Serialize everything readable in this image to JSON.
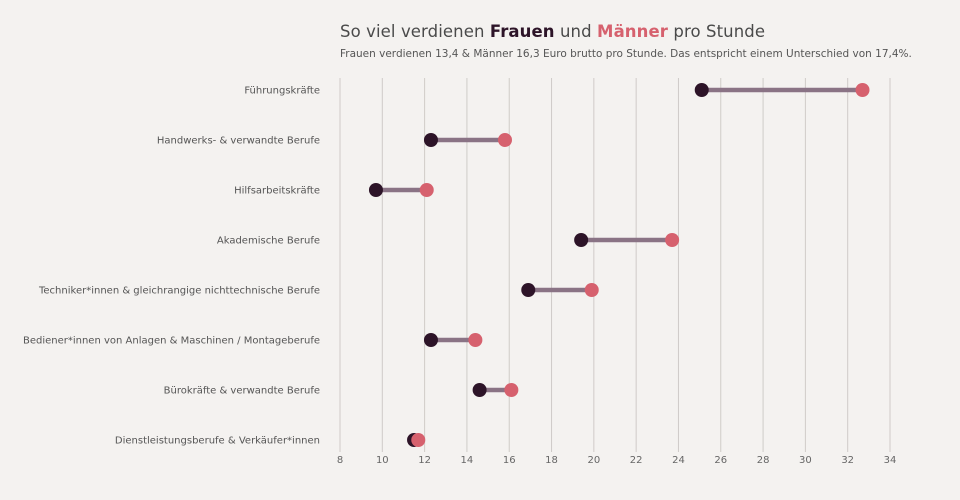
{
  "header": {
    "title_prefix": "So viel verdienen ",
    "title_women": "Frauen",
    "title_mid": " und ",
    "title_men": "Männer",
    "title_suffix": " pro Stunde",
    "subtitle": "Frauen verdienen 13,4 & Männer 16,3 Euro brutto pro Stunde. Das entspricht einem Unterschied von 17,4%."
  },
  "colors": {
    "women": "#2d1428",
    "men": "#d6616e",
    "connector": "#8a7385",
    "grid": "#cfcbc8",
    "background": "#f4f2f0"
  },
  "chart_data": {
    "type": "dumbbell",
    "title": "So viel verdienen Frauen und Männer pro Stunde",
    "subtitle": "Frauen verdienen 13,4 & Männer 16,3 Euro brutto pro Stunde. Das entspricht einem Unterschied von 17,4%.",
    "xlabel": "",
    "ylabel": "",
    "xlim": [
      8,
      34
    ],
    "xticks": [
      8,
      10,
      12,
      14,
      16,
      18,
      20,
      22,
      24,
      26,
      28,
      30,
      32,
      34
    ],
    "grid": true,
    "series": [
      {
        "name": "Frauen",
        "color": "#2d1428"
      },
      {
        "name": "Männer",
        "color": "#d6616e"
      }
    ],
    "categories": [
      "Führungskräfte",
      "Handwerks- & verwandte Berufe",
      "Hilfsarbeitskräfte",
      "Akademische Berufe",
      "Techniker*innen & gleichrangige nichttechnische Berufe",
      "Bediener*innen von Anlagen & Maschinen / Montageberufe",
      "Bürokräfte & verwandte Berufe",
      "Dienstleistungsberufe & Verkäufer*innen"
    ],
    "women": [
      25.1,
      12.3,
      9.7,
      19.4,
      16.9,
      12.3,
      14.6,
      11.5
    ],
    "men": [
      32.7,
      15.8,
      12.1,
      23.7,
      19.9,
      14.4,
      16.1,
      11.7
    ]
  }
}
